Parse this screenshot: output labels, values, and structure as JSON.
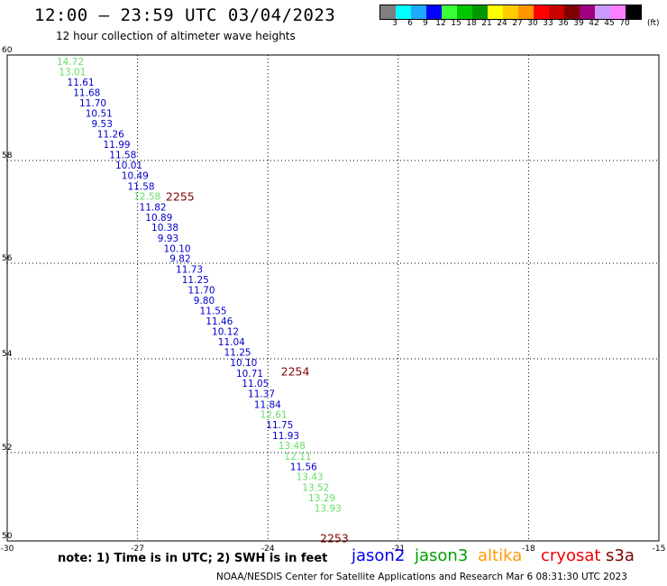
{
  "header": {
    "title": "12:00 — 23:59 UTC 03/04/2023",
    "subtitle": "12 hour collection of altimeter wave heights"
  },
  "colorbar": {
    "colors": [
      "#7f7f7f",
      "#00ffff",
      "#1eaaff",
      "#0000ff",
      "#3cff3c",
      "#00c800",
      "#009600",
      "#ffff00",
      "#ffcc00",
      "#ff9600",
      "#ff0000",
      "#c80000",
      "#800000",
      "#a0007f",
      "#cc99ff",
      "#ff80ff",
      "#000000"
    ],
    "labels": [
      "3",
      "6",
      "9",
      "12",
      "15",
      "18",
      "21",
      "24",
      "27",
      "30",
      "33",
      "36",
      "39",
      "42",
      "45",
      "70"
    ],
    "unit": "(ft)"
  },
  "axes": {
    "x_ticks": [
      "-30",
      "-27",
      "-24",
      "-21",
      "-18",
      "-15"
    ],
    "y_ticks": [
      "60",
      "58",
      "56",
      "54",
      "52",
      "50"
    ]
  },
  "track_labels": [
    {
      "text": "2255",
      "lon": -26.35,
      "lat": 57.0
    },
    {
      "text": "2254",
      "lon": -23.7,
      "lat": 53.4
    },
    {
      "text": "2253",
      "lon": -22.8,
      "lat": 49.97
    }
  ],
  "chart_data": {
    "type": "scatter",
    "xlim": [
      -30,
      -15
    ],
    "ylim": [
      50,
      60
    ],
    "grid": true,
    "points": [
      {
        "lon": -28.86,
        "lat": 59.8,
        "swh": "14.72",
        "color": "#66dd66"
      },
      {
        "lon": -28.81,
        "lat": 59.58,
        "swh": "13.01",
        "color": "#66dd66"
      },
      {
        "lon": -28.62,
        "lat": 59.37,
        "swh": "11.61",
        "color": "#0000cc"
      },
      {
        "lon": -28.48,
        "lat": 59.16,
        "swh": "11.68",
        "color": "#0000cc"
      },
      {
        "lon": -28.34,
        "lat": 58.94,
        "swh": "11.70",
        "color": "#0000cc"
      },
      {
        "lon": -28.2,
        "lat": 58.73,
        "swh": "10.51",
        "color": "#0000cc"
      },
      {
        "lon": -28.06,
        "lat": 58.52,
        "swh": "9.53",
        "color": "#0000cc"
      },
      {
        "lon": -27.93,
        "lat": 58.3,
        "swh": "11.26",
        "color": "#0000cc"
      },
      {
        "lon": -27.79,
        "lat": 58.09,
        "swh": "11.99",
        "color": "#0000cc"
      },
      {
        "lon": -27.65,
        "lat": 57.88,
        "swh": "11.58",
        "color": "#0000cc"
      },
      {
        "lon": -27.51,
        "lat": 57.66,
        "swh": "10.01",
        "color": "#0000cc"
      },
      {
        "lon": -27.37,
        "lat": 57.45,
        "swh": "10.49",
        "color": "#0000cc"
      },
      {
        "lon": -27.23,
        "lat": 57.23,
        "swh": "11.58",
        "color": "#0000cc"
      },
      {
        "lon": -27.09,
        "lat": 57.02,
        "swh": "12.58",
        "color": "#66dd66"
      },
      {
        "lon": -26.96,
        "lat": 56.8,
        "swh": "11.82",
        "color": "#0000cc"
      },
      {
        "lon": -26.82,
        "lat": 56.59,
        "swh": "10.89",
        "color": "#0000cc"
      },
      {
        "lon": -26.68,
        "lat": 56.38,
        "swh": "10.38",
        "color": "#0000cc"
      },
      {
        "lon": -26.54,
        "lat": 56.16,
        "swh": "9.93",
        "color": "#0000cc"
      },
      {
        "lon": -26.4,
        "lat": 55.95,
        "swh": "10.10",
        "color": "#0000cc"
      },
      {
        "lon": -26.26,
        "lat": 55.74,
        "swh": "9.82",
        "color": "#0000cc"
      },
      {
        "lon": -26.12,
        "lat": 55.52,
        "swh": "11.73",
        "color": "#0000cc"
      },
      {
        "lon": -25.98,
        "lat": 55.31,
        "swh": "11.25",
        "color": "#0000cc"
      },
      {
        "lon": -25.84,
        "lat": 55.09,
        "swh": "11.70",
        "color": "#0000cc"
      },
      {
        "lon": -25.71,
        "lat": 54.88,
        "swh": "9.80",
        "color": "#0000cc"
      },
      {
        "lon": -25.57,
        "lat": 54.67,
        "swh": "11.55",
        "color": "#0000cc"
      },
      {
        "lon": -25.43,
        "lat": 54.45,
        "swh": "11.46",
        "color": "#0000cc"
      },
      {
        "lon": -25.29,
        "lat": 54.24,
        "swh": "10.12",
        "color": "#0000cc"
      },
      {
        "lon": -25.15,
        "lat": 54.03,
        "swh": "11.04",
        "color": "#0000cc"
      },
      {
        "lon": -25.01,
        "lat": 53.81,
        "swh": "11.25",
        "color": "#0000cc"
      },
      {
        "lon": -24.87,
        "lat": 53.6,
        "swh": "10.10",
        "color": "#0000cc"
      },
      {
        "lon": -24.73,
        "lat": 53.38,
        "swh": "10.71",
        "color": "#0000cc"
      },
      {
        "lon": -24.6,
        "lat": 53.17,
        "swh": "11.05",
        "color": "#0000cc"
      },
      {
        "lon": -24.46,
        "lat": 52.96,
        "swh": "11.37",
        "color": "#0000cc"
      },
      {
        "lon": -24.32,
        "lat": 52.74,
        "swh": "11.84",
        "color": "#0000cc"
      },
      {
        "lon": -24.18,
        "lat": 52.53,
        "swh": "12.61",
        "color": "#66dd66"
      },
      {
        "lon": -24.04,
        "lat": 52.32,
        "swh": "11.75",
        "color": "#0000cc"
      },
      {
        "lon": -23.9,
        "lat": 52.1,
        "swh": "11.93",
        "color": "#0000cc"
      },
      {
        "lon": -23.76,
        "lat": 51.89,
        "swh": "13.48",
        "color": "#66dd66"
      },
      {
        "lon": -23.62,
        "lat": 51.67,
        "swh": "12.11",
        "color": "#66dd66"
      },
      {
        "lon": -23.49,
        "lat": 51.46,
        "swh": "11.56",
        "color": "#0000cc"
      },
      {
        "lon": -23.35,
        "lat": 51.25,
        "swh": "13.43",
        "color": "#66dd66"
      },
      {
        "lon": -23.21,
        "lat": 51.03,
        "swh": "13.52",
        "color": "#66dd66"
      },
      {
        "lon": -23.07,
        "lat": 50.82,
        "swh": "13.29",
        "color": "#66dd66"
      },
      {
        "lon": -22.93,
        "lat": 50.6,
        "swh": "13.93",
        "color": "#66dd66"
      }
    ]
  },
  "legend": {
    "note": "note:  1) Time is in UTC;  2) SWH is in feet",
    "satellites": [
      {
        "name": "jason2",
        "color": "#0000ee"
      },
      {
        "name": "jason3",
        "color": "#00a000"
      },
      {
        "name": "altika",
        "color": "#ff9900"
      },
      {
        "name": "cryosat",
        "color": "#ee0000"
      },
      {
        "name": "s3a",
        "color": "#800000"
      }
    ]
  },
  "footer": "NOAA/NESDIS Center for Satellite Applications and Research     Mar  6 08:31:30 UTC 2023"
}
